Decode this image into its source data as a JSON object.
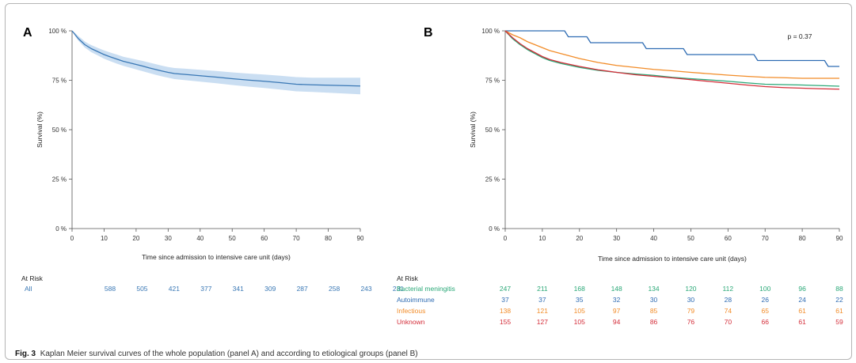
{
  "chart_data": [
    {
      "panel": "A",
      "type": "line",
      "xlabel": "Time since admission to intensive care unit (days)",
      "ylabel": "Survival (%)",
      "xlim": [
        0,
        90
      ],
      "ylim": [
        0,
        100
      ],
      "x_ticks": [
        "0",
        "10",
        "20",
        "30",
        "40",
        "50",
        "60",
        "70",
        "80",
        "90"
      ],
      "y_ticks": [
        "0 %",
        "25 %",
        "50 %",
        "75 %",
        "100 %"
      ],
      "confidence_band": true,
      "series": [
        {
          "name": "All",
          "color": "#3a78b5",
          "band_color": "#b8d3ee",
          "x": [
            0,
            1,
            2,
            3,
            4,
            5,
            6,
            8,
            10,
            12,
            14,
            16,
            18,
            20,
            22,
            24,
            26,
            28,
            30,
            32,
            35,
            40,
            45,
            50,
            55,
            60,
            65,
            70,
            75,
            80,
            85,
            90
          ],
          "y": [
            100,
            98,
            96,
            94.5,
            93,
            92,
            91,
            89.5,
            88,
            86.8,
            85.7,
            84.6,
            83.8,
            83,
            82.2,
            81.3,
            80.5,
            79.7,
            79,
            78.4,
            78,
            77.3,
            76.6,
            75.8,
            75.1,
            74.5,
            73.8,
            73,
            72.7,
            72.5,
            72.3,
            72.1
          ],
          "lower": [
            100,
            97.2,
            95,
            93.2,
            91.5,
            90.4,
            89.2,
            87.6,
            85.9,
            84.6,
            83.4,
            82.3,
            81.4,
            80.5,
            79.6,
            78.7,
            77.8,
            77,
            76.3,
            75.6,
            75.1,
            74.3,
            73.5,
            72.6,
            71.8,
            71.1,
            70.3,
            69.4,
            69.1,
            68.7,
            68.3,
            67.9
          ],
          "upper": [
            100,
            98.8,
            97.3,
            96,
            94.6,
            93.6,
            92.8,
            91.4,
            90.1,
            89,
            88,
            86.9,
            86.2,
            85.5,
            84.8,
            84,
            83.2,
            82.4,
            81.7,
            81.2,
            80.9,
            80.3,
            79.7,
            79,
            78.4,
            77.9,
            77.3,
            76.6,
            76.3,
            76.3,
            76.3,
            76.3
          ]
        }
      ],
      "at_risk": {
        "title": "At Risk",
        "rows": [
          {
            "label": "All",
            "color": "#3a78b5",
            "values": [
              "588",
              "505",
              "421",
              "377",
              "341",
              "309",
              "287",
              "258",
              "243",
              "231"
            ]
          }
        ]
      }
    },
    {
      "panel": "B",
      "type": "line",
      "xlabel": "Time since admission to intensive care unit (days)",
      "ylabel": "Survival (%)",
      "xlim": [
        0,
        90
      ],
      "ylim": [
        0,
        100
      ],
      "x_ticks": [
        "0",
        "10",
        "20",
        "30",
        "40",
        "50",
        "60",
        "70",
        "80",
        "90"
      ],
      "y_ticks": [
        "0 %",
        "25 %",
        "50 %",
        "75 %",
        "100 %"
      ],
      "annotation": "p = 0.37",
      "series": [
        {
          "name": "Bacterial meningitis",
          "color": "#2aa877",
          "x": [
            0,
            2,
            4,
            6,
            8,
            10,
            12,
            15,
            20,
            25,
            30,
            35,
            40,
            45,
            50,
            55,
            60,
            65,
            70,
            75,
            80,
            85,
            90
          ],
          "y": [
            100,
            96,
            93,
            90.5,
            88.5,
            86.5,
            85,
            83.5,
            81.5,
            80,
            79,
            78.2,
            77.5,
            76.5,
            75.8,
            75.2,
            74.5,
            73.7,
            73,
            72.8,
            72.6,
            72.3,
            72
          ]
        },
        {
          "name": "Autoimmune",
          "color": "#2f6cb3",
          "x": [
            0,
            16,
            17,
            22,
            23,
            37,
            38,
            48,
            49,
            67,
            68,
            86,
            87,
            90
          ],
          "y": [
            100,
            100,
            97,
            97,
            94,
            94,
            91,
            91,
            88,
            88,
            85,
            85,
            82,
            82
          ]
        },
        {
          "name": "Infectious",
          "color": "#f28c28",
          "x": [
            0,
            2,
            4,
            6,
            8,
            10,
            12,
            15,
            20,
            25,
            30,
            35,
            40,
            45,
            50,
            55,
            60,
            65,
            70,
            75,
            80,
            85,
            90
          ],
          "y": [
            100,
            98,
            96.5,
            94.5,
            93,
            91.5,
            90,
            88.5,
            86,
            84,
            82.5,
            81.5,
            80.5,
            79.8,
            79,
            78.3,
            77.6,
            77,
            76.5,
            76.3,
            76,
            76,
            76
          ]
        },
        {
          "name": "Unknown",
          "color": "#d42e3a",
          "x": [
            0,
            2,
            4,
            6,
            8,
            10,
            12,
            15,
            20,
            25,
            30,
            35,
            40,
            45,
            50,
            55,
            60,
            65,
            70,
            75,
            80,
            85,
            90
          ],
          "y": [
            100,
            96.5,
            93.5,
            91,
            89,
            87,
            85.5,
            84,
            82,
            80.3,
            79,
            77.8,
            77,
            76.2,
            75.3,
            74.4,
            73.5,
            72.6,
            71.8,
            71.3,
            71,
            70.7,
            70.5
          ]
        }
      ],
      "at_risk": {
        "title": "At Risk",
        "rows": [
          {
            "label": "Bacterial meningitis",
            "color": "#2aa877",
            "values": [
              "247",
              "211",
              "168",
              "148",
              "134",
              "120",
              "112",
              "100",
              "96",
              "88"
            ]
          },
          {
            "label": "Autoimmune",
            "color": "#2f6cb3",
            "values": [
              "37",
              "37",
              "35",
              "32",
              "30",
              "30",
              "28",
              "26",
              "24",
              "22"
            ]
          },
          {
            "label": "Infectious",
            "color": "#f28c28",
            "values": [
              "138",
              "121",
              "105",
              "97",
              "85",
              "79",
              "74",
              "65",
              "61",
              "61"
            ]
          },
          {
            "label": "Unknown",
            "color": "#d42e3a",
            "values": [
              "155",
              "127",
              "105",
              "94",
              "86",
              "76",
              "70",
              "66",
              "61",
              "59"
            ]
          }
        ]
      }
    }
  ],
  "caption": {
    "label": "Fig. 3",
    "text": "Kaplan Meier survival curves of the whole population (panel A) and according to etiological groups (panel B)"
  }
}
